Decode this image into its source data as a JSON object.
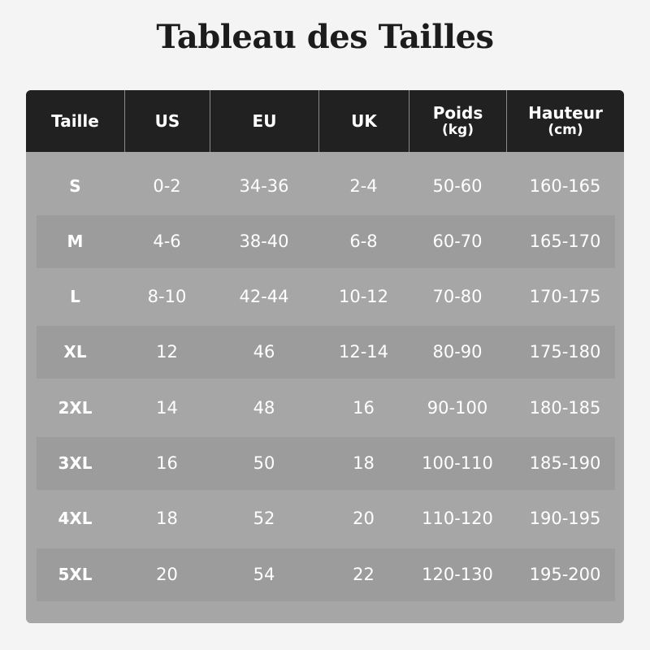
{
  "title": "Tableau des Tailles",
  "colors": {
    "header_bg": "#212121",
    "body_bg": "#a6a6a6",
    "stripe_bg": "#9c9c9c",
    "page_bg": "#f4f4f4",
    "text": "#ffffff"
  },
  "headers": [
    {
      "label": "Taille",
      "unit": ""
    },
    {
      "label": "US",
      "unit": ""
    },
    {
      "label": "EU",
      "unit": ""
    },
    {
      "label": "UK",
      "unit": ""
    },
    {
      "label": "Poids",
      "unit": "(kg)"
    },
    {
      "label": "Hauteur",
      "unit": "(cm)"
    }
  ],
  "rows": [
    [
      "S",
      "0-2",
      "34-36",
      "2-4",
      "50-60",
      "160-165"
    ],
    [
      "M",
      "4-6",
      "38-40",
      "6-8",
      "60-70",
      "165-170"
    ],
    [
      "L",
      "8-10",
      "42-44",
      "10-12",
      "70-80",
      "170-175"
    ],
    [
      "XL",
      "12",
      "46",
      "12-14",
      "80-90",
      "175-180"
    ],
    [
      "2XL",
      "14",
      "48",
      "16",
      "90-100",
      "180-185"
    ],
    [
      "3XL",
      "16",
      "50",
      "18",
      "100-110",
      "185-190"
    ],
    [
      "4XL",
      "18",
      "52",
      "20",
      "110-120",
      "190-195"
    ],
    [
      "5XL",
      "20",
      "54",
      "22",
      "120-130",
      "195-200"
    ]
  ]
}
